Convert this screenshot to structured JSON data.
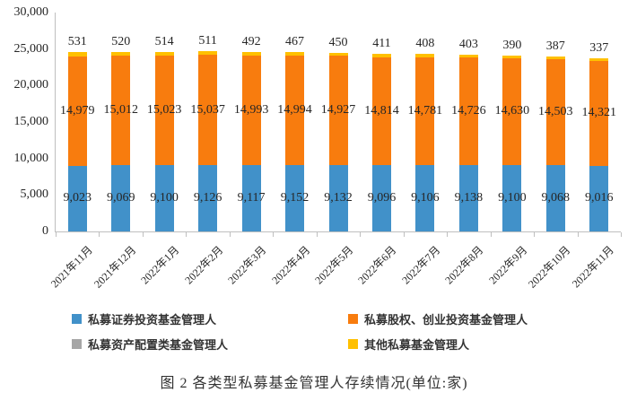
{
  "figure": {
    "caption": "图 2 各类型私募基金管理人存续情况(单位:家)"
  },
  "chart_data": {
    "type": "bar",
    "stacked": true,
    "title": "图 2 各类型私募基金管理人存续情况(单位:家)",
    "xlabel": "",
    "ylabel": "",
    "ylim": [
      0,
      30000
    ],
    "y_ticks": [
      0,
      5000,
      10000,
      15000,
      20000,
      25000,
      30000
    ],
    "grid": false,
    "legend_position": "bottom",
    "categories": [
      "2021年11月",
      "2021年12月",
      "2022年1月",
      "2022年2月",
      "2022年3月",
      "2022年4月",
      "2022年5月",
      "2022年6月",
      "2022年7月",
      "2022年8月",
      "2022年9月",
      "2022年10月",
      "2022年11月"
    ],
    "series": [
      {
        "name": "私募证券投资基金管理人",
        "color": "#4191C9",
        "label_position": "inside",
        "values": [
          9023,
          9069,
          9100,
          9126,
          9117,
          9152,
          9132,
          9096,
          9106,
          9138,
          9100,
          9068,
          9016
        ]
      },
      {
        "name": "私募股权、创业投资基金管理人",
        "color": "#F87C0E",
        "label_position": "inside",
        "values": [
          14979,
          15012,
          15023,
          15037,
          14993,
          14994,
          14927,
          14814,
          14781,
          14726,
          14630,
          14503,
          14321
        ]
      },
      {
        "name": "其他私募基金管理人",
        "color": "#FFC000",
        "label_position": "above",
        "values": [
          531,
          520,
          514,
          511,
          492,
          467,
          450,
          411,
          408,
          403,
          390,
          387,
          337
        ]
      }
    ],
    "legend": [
      {
        "label": "私募证券投资基金管理人",
        "color": "#4191C9"
      },
      {
        "label": "私募股权、创业投资基金管理人",
        "color": "#F87C0E"
      },
      {
        "label": "私募资产配置类基金管理人",
        "color": "#A6A6A6"
      },
      {
        "label": "其他私募基金管理人",
        "color": "#FFC000"
      }
    ]
  }
}
